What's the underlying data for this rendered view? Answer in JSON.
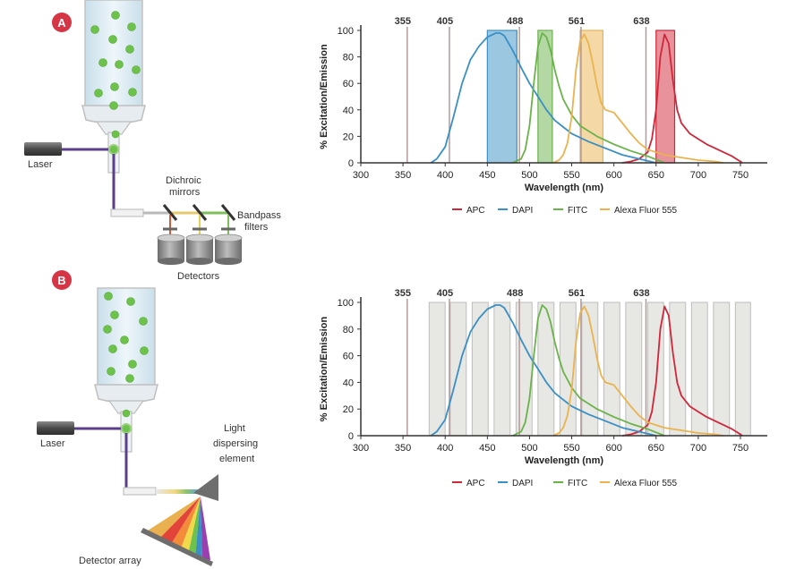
{
  "colors": {
    "apc": "#d1263a",
    "dapi": "#3a8fc4",
    "fitc": "#6ab24a",
    "alexa": "#eab34e",
    "badge": "#d63546",
    "laser_line": "#5b3f8c",
    "cell": "#6cc24a",
    "band_gray": "#e7e7e4",
    "laser_tick": "#b49a9a"
  },
  "panel_a": {
    "badge": "A",
    "laser_label": "Laser",
    "dichroic_label_1": "Dichroic",
    "dichroic_label_2": "mirrors",
    "bandpass_label_1": "Bandpass",
    "bandpass_label_2": "filters",
    "detectors_label": "Detectors"
  },
  "panel_b": {
    "badge": "B",
    "laser_label": "Laser",
    "dispersing_label_1": "Light",
    "dispersing_label_2": "dispersing",
    "dispersing_label_3": "element",
    "detector_array_label": "Detector array"
  },
  "chart_data": [
    {
      "type": "line",
      "panel": "A",
      "xlabel": "Wavelength (nm)",
      "ylabel": "% Excitation/Emission",
      "xlim": [
        300,
        750
      ],
      "ylim": [
        0,
        100
      ],
      "xticks": [
        "300",
        "350",
        "400",
        "450",
        "500",
        "550",
        "600",
        "650",
        "700",
        "750"
      ],
      "yticks": [
        "0",
        "20",
        "40",
        "60",
        "80",
        "100"
      ],
      "laser_lines": [
        {
          "label": "355",
          "x": 355
        },
        {
          "label": "405",
          "x": 405
        },
        {
          "label": "488",
          "x": 488
        },
        {
          "label": "561",
          "x": 561
        },
        {
          "label": "638",
          "x": 638
        }
      ],
      "bandpass_filters": [
        {
          "series": "DAPI",
          "x0": 450,
          "x1": 485
        },
        {
          "series": "FITC",
          "x0": 510,
          "x1": 527
        },
        {
          "series": "Alexa Fluor 555",
          "x0": 560,
          "x1": 587
        },
        {
          "series": "APC",
          "x0": 650,
          "x1": 672
        }
      ],
      "series": [
        {
          "name": "APC",
          "x": [
            610,
            620,
            630,
            640,
            645,
            650,
            655,
            660,
            665,
            670,
            675,
            680,
            690,
            700,
            710,
            720,
            730,
            740,
            745,
            750,
            752
          ],
          "y": [
            0,
            1,
            3,
            8,
            18,
            40,
            80,
            97,
            90,
            62,
            40,
            30,
            22,
            18,
            14,
            11,
            8,
            5,
            3,
            1,
            0
          ]
        },
        {
          "name": "DAPI",
          "x": [
            383,
            390,
            400,
            410,
            420,
            430,
            440,
            450,
            460,
            465,
            470,
            480,
            490,
            500,
            510,
            520,
            530,
            540,
            550,
            570,
            590,
            610,
            630,
            650
          ],
          "y": [
            0,
            3,
            12,
            35,
            60,
            78,
            88,
            95,
            98,
            98,
            96,
            85,
            72,
            60,
            50,
            40,
            32,
            27,
            22,
            16,
            11,
            6,
            3,
            0
          ]
        },
        {
          "name": "FITC",
          "x": [
            480,
            490,
            495,
            500,
            505,
            510,
            515,
            520,
            525,
            530,
            535,
            540,
            550,
            560,
            580,
            600,
            620,
            640,
            660
          ],
          "y": [
            0,
            3,
            10,
            28,
            60,
            88,
            98,
            95,
            85,
            70,
            58,
            48,
            36,
            28,
            20,
            14,
            9,
            5,
            0
          ]
        },
        {
          "name": "Alexa Fluor 555",
          "x": [
            528,
            535,
            540,
            545,
            550,
            555,
            560,
            565,
            570,
            575,
            580,
            585,
            590,
            600,
            610,
            620,
            630,
            640,
            660,
            680,
            700,
            720,
            730
          ],
          "y": [
            0,
            2,
            6,
            15,
            35,
            70,
            92,
            97,
            90,
            75,
            58,
            45,
            40,
            38,
            30,
            22,
            15,
            10,
            6,
            4,
            2,
            1,
            0
          ]
        }
      ],
      "legend": "bottom"
    },
    {
      "type": "line",
      "panel": "B",
      "xlabel": "Wavelength (nm)",
      "ylabel": "% Excitation/Emission",
      "xlim": [
        300,
        750
      ],
      "ylim": [
        0,
        100
      ],
      "xticks": [
        "300",
        "350",
        "400",
        "450",
        "500",
        "550",
        "600",
        "650",
        "700",
        "750"
      ],
      "yticks": [
        "0",
        "20",
        "40",
        "60",
        "80",
        "100"
      ],
      "laser_lines": [
        {
          "label": "355",
          "x": 355
        },
        {
          "label": "405",
          "x": 405
        },
        {
          "label": "488",
          "x": 488
        },
        {
          "label": "561",
          "x": 561
        },
        {
          "label": "638",
          "x": 638
        }
      ],
      "detector_channels": [
        [
          381,
          400
        ],
        [
          406,
          425
        ],
        [
          432,
          451
        ],
        [
          458,
          477
        ],
        [
          484,
          503
        ],
        [
          510,
          529
        ],
        [
          536,
          555
        ],
        [
          562,
          581
        ],
        [
          588,
          607
        ],
        [
          614,
          633
        ],
        [
          640,
          659
        ],
        [
          666,
          685
        ],
        [
          692,
          711
        ],
        [
          718,
          737
        ],
        [
          744,
          762
        ]
      ],
      "series": [
        {
          "name": "APC",
          "x": [
            610,
            620,
            630,
            640,
            645,
            650,
            655,
            660,
            665,
            670,
            675,
            680,
            690,
            700,
            710,
            720,
            730,
            740,
            745,
            750,
            752
          ],
          "y": [
            0,
            1,
            3,
            8,
            18,
            40,
            80,
            97,
            90,
            62,
            40,
            30,
            22,
            18,
            14,
            11,
            8,
            5,
            3,
            1,
            0
          ]
        },
        {
          "name": "DAPI",
          "x": [
            383,
            390,
            400,
            410,
            420,
            430,
            440,
            450,
            460,
            465,
            470,
            480,
            490,
            500,
            510,
            520,
            530,
            540,
            550,
            570,
            590,
            610,
            630,
            650
          ],
          "y": [
            0,
            3,
            12,
            35,
            60,
            78,
            88,
            95,
            98,
            98,
            96,
            85,
            72,
            60,
            50,
            40,
            32,
            27,
            22,
            16,
            11,
            6,
            3,
            0
          ]
        },
        {
          "name": "FITC",
          "x": [
            480,
            490,
            495,
            500,
            505,
            510,
            515,
            520,
            525,
            530,
            535,
            540,
            550,
            560,
            580,
            600,
            620,
            640,
            660
          ],
          "y": [
            0,
            3,
            10,
            28,
            60,
            88,
            98,
            95,
            85,
            70,
            58,
            48,
            36,
            28,
            20,
            14,
            9,
            5,
            0
          ]
        },
        {
          "name": "Alexa Fluor 555",
          "x": [
            528,
            535,
            540,
            545,
            550,
            555,
            560,
            565,
            570,
            575,
            580,
            585,
            590,
            600,
            610,
            620,
            630,
            640,
            660,
            680,
            700,
            720,
            730
          ],
          "y": [
            0,
            2,
            6,
            15,
            35,
            70,
            92,
            97,
            90,
            75,
            58,
            45,
            40,
            38,
            30,
            22,
            15,
            10,
            6,
            4,
            2,
            1,
            0
          ]
        }
      ],
      "legend": "bottom"
    }
  ]
}
